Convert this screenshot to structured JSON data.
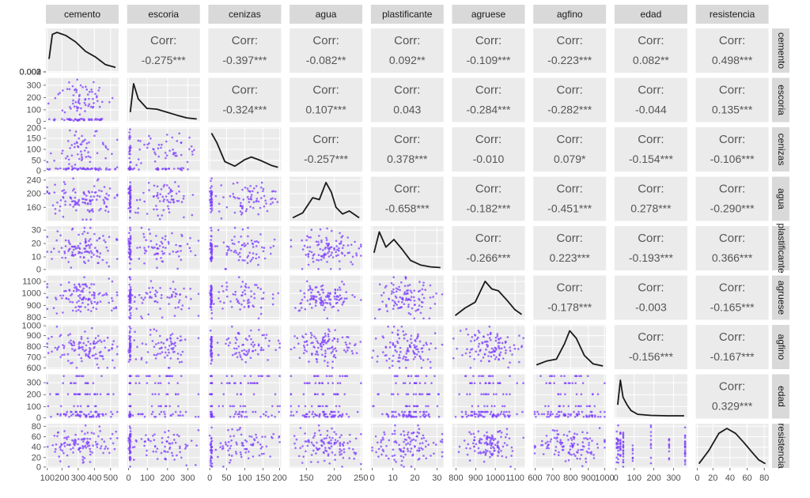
{
  "chart_data": {
    "type": "pairs",
    "variables": [
      "cemento",
      "escoria",
      "cenizas",
      "agua",
      "plastificante",
      "agruese",
      "agfino",
      "edad",
      "resistencia"
    ],
    "row_strip_labels": [
      "cemento",
      "escoria",
      "cenizas",
      "agua",
      "plastificante",
      "agruese",
      "agfino",
      "edad",
      "resistencia"
    ],
    "corr_label": "Corr:",
    "correlations": [
      {
        "row": 0,
        "col": 1,
        "text": "-0.275***"
      },
      {
        "row": 0,
        "col": 2,
        "text": "-0.397***"
      },
      {
        "row": 0,
        "col": 3,
        "text": "-0.082**"
      },
      {
        "row": 0,
        "col": 4,
        "text": "0.092**"
      },
      {
        "row": 0,
        "col": 5,
        "text": "-0.109***"
      },
      {
        "row": 0,
        "col": 6,
        "text": "-0.223***"
      },
      {
        "row": 0,
        "col": 7,
        "text": "0.082**"
      },
      {
        "row": 0,
        "col": 8,
        "text": "0.498***"
      },
      {
        "row": 1,
        "col": 2,
        "text": "-0.324***"
      },
      {
        "row": 1,
        "col": 3,
        "text": "0.107***"
      },
      {
        "row": 1,
        "col": 4,
        "text": "0.043"
      },
      {
        "row": 1,
        "col": 5,
        "text": "-0.284***"
      },
      {
        "row": 1,
        "col": 6,
        "text": "-0.282***"
      },
      {
        "row": 1,
        "col": 7,
        "text": "-0.044"
      },
      {
        "row": 1,
        "col": 8,
        "text": "0.135***"
      },
      {
        "row": 2,
        "col": 3,
        "text": "-0.257***"
      },
      {
        "row": 2,
        "col": 4,
        "text": "0.378***"
      },
      {
        "row": 2,
        "col": 5,
        "text": "-0.010"
      },
      {
        "row": 2,
        "col": 6,
        "text": "0.079*"
      },
      {
        "row": 2,
        "col": 7,
        "text": "-0.154***"
      },
      {
        "row": 2,
        "col": 8,
        "text": "-0.106***"
      },
      {
        "row": 3,
        "col": 4,
        "text": "-0.658***"
      },
      {
        "row": 3,
        "col": 5,
        "text": "-0.182***"
      },
      {
        "row": 3,
        "col": 6,
        "text": "-0.451***"
      },
      {
        "row": 3,
        "col": 7,
        "text": "0.278***"
      },
      {
        "row": 3,
        "col": 8,
        "text": "-0.290***"
      },
      {
        "row": 4,
        "col": 5,
        "text": "-0.266***"
      },
      {
        "row": 4,
        "col": 6,
        "text": "0.223***"
      },
      {
        "row": 4,
        "col": 7,
        "text": "-0.193***"
      },
      {
        "row": 4,
        "col": 8,
        "text": "0.366***"
      },
      {
        "row": 5,
        "col": 6,
        "text": "-0.178***"
      },
      {
        "row": 5,
        "col": 7,
        "text": "-0.003"
      },
      {
        "row": 5,
        "col": 8,
        "text": "-0.165***"
      },
      {
        "row": 6,
        "col": 7,
        "text": "-0.156***"
      },
      {
        "row": 6,
        "col": 8,
        "text": "-0.167***"
      },
      {
        "row": 7,
        "col": 8,
        "text": "0.329***"
      }
    ],
    "y_ticks": [
      [
        "0.003",
        "0.002",
        "0.002",
        "0.001",
        "0.000"
      ],
      [
        "300",
        "200",
        "100",
        "0"
      ],
      [
        "200",
        "150",
        "100",
        "50",
        "0"
      ],
      [
        "240",
        "200",
        "160"
      ],
      [
        "30",
        "20",
        "10",
        "0"
      ],
      [
        "1100",
        "1000",
        "900",
        "800"
      ],
      [
        "1000",
        "900",
        "800",
        "700",
        "600"
      ],
      [
        "300",
        "200",
        "100",
        "0"
      ],
      [
        "80",
        "60",
        "40",
        "20",
        "0"
      ]
    ],
    "x_ticks": [
      [
        "100",
        "200",
        "300",
        "400",
        "500"
      ],
      [
        "0",
        "100",
        "200",
        "300"
      ],
      [
        "0",
        "50",
        "100",
        "150",
        "200"
      ],
      [
        "150",
        "200",
        "250"
      ],
      [
        "0",
        "10",
        "20",
        "30"
      ],
      [
        "800",
        "900",
        "1000",
        "1100"
      ],
      [
        "600",
        "700",
        "800",
        "900",
        "1000"
      ],
      [
        "0",
        "100",
        "200",
        "300"
      ],
      [
        "0",
        "20",
        "40",
        "60",
        "80"
      ]
    ],
    "ranges": [
      [
        100,
        550
      ],
      [
        0,
        360
      ],
      [
        0,
        200
      ],
      [
        120,
        250
      ],
      [
        0,
        33
      ],
      [
        780,
        1150
      ],
      [
        590,
        1000
      ],
      [
        0,
        370
      ],
      [
        0,
        85
      ]
    ],
    "point_color": "#7b3cff",
    "density_color": "#1a1a1a",
    "panel_bg": "#ebebeb",
    "strip_bg": "#d9d9d9",
    "grid_color": "#ffffff",
    "text_color": "#555555"
  }
}
